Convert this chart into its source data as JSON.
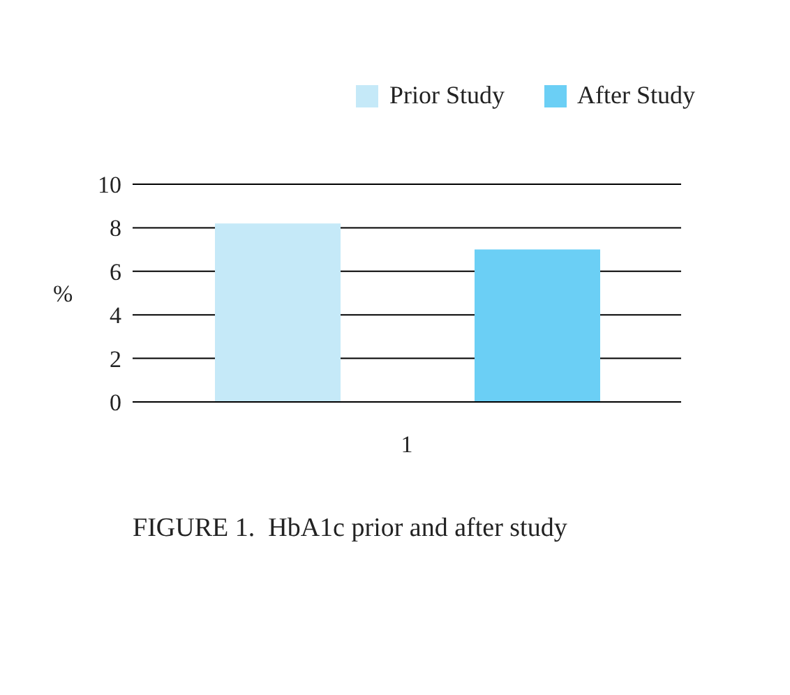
{
  "chart_data": {
    "type": "bar",
    "categories": [
      "1"
    ],
    "ylabel": "%",
    "ylim": [
      0,
      10
    ],
    "yticks": [
      0,
      2,
      4,
      6,
      8,
      10
    ],
    "grid": "y",
    "legend": "top right",
    "series": [
      {
        "name": "Prior Study",
        "color": "#c5e9f8",
        "values": [
          8.2
        ]
      },
      {
        "name": "After Study",
        "color": "#6bcff5",
        "values": [
          7.0
        ]
      }
    ],
    "annotations": [
      "FIGURE 1.  HbA1c prior and after study"
    ]
  }
}
